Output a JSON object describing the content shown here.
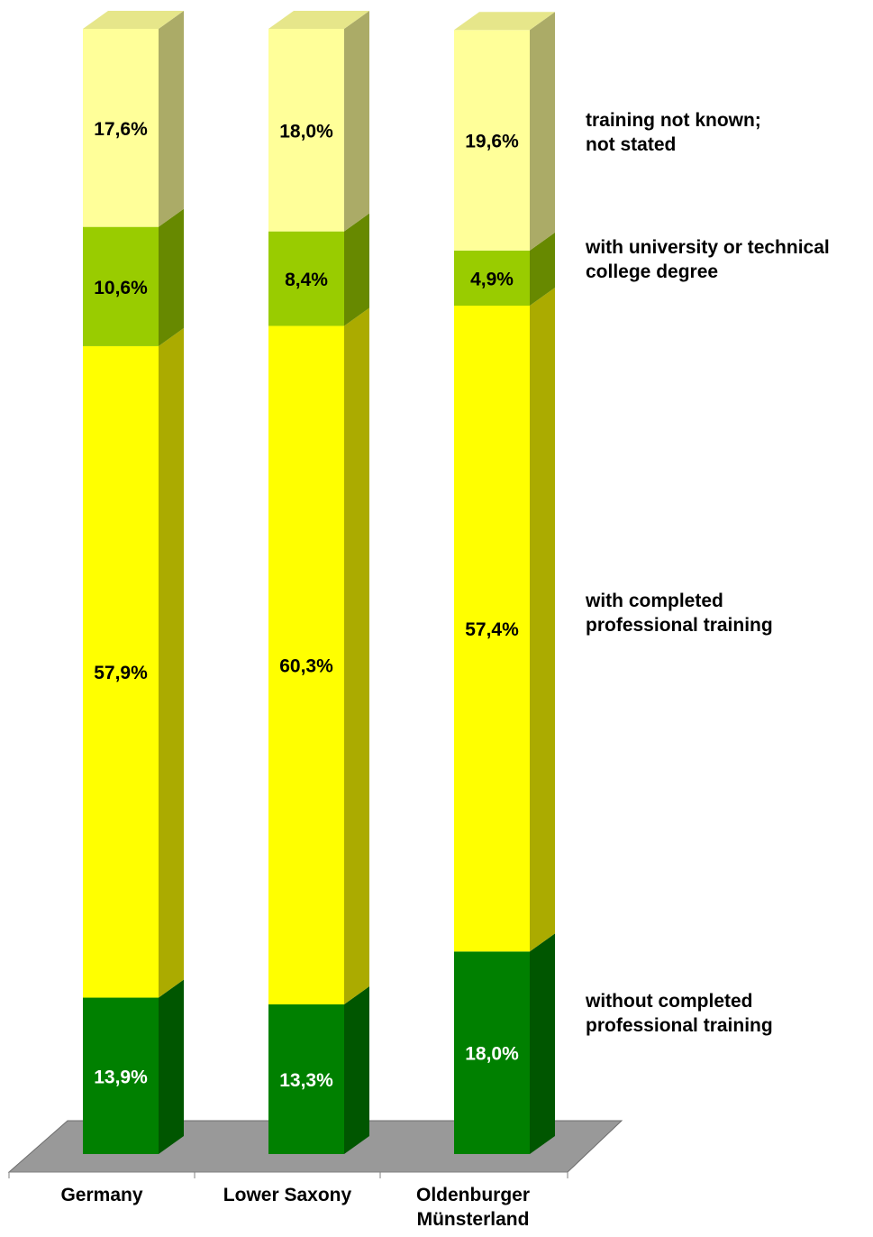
{
  "chart_data": {
    "type": "bar",
    "stacked": true,
    "three_d": true,
    "categories": [
      "Germany",
      "Lower Saxony",
      "Oldenburger Münsterland"
    ],
    "series": [
      {
        "name": "without completed professional training",
        "values": [
          13.9,
          13.3,
          18.0
        ],
        "labels": [
          "13,9%",
          "13,3%",
          "18,0%"
        ],
        "color": "#008000",
        "label_color": "#ffffff"
      },
      {
        "name": "with completed professional training",
        "values": [
          57.9,
          60.3,
          57.4
        ],
        "labels": [
          "57,9%",
          "60,3%",
          "57,4%"
        ],
        "color": "#ffff00",
        "label_color": "#000000"
      },
      {
        "name": "with university or technical college degree",
        "values": [
          10.6,
          8.4,
          4.9
        ],
        "labels": [
          "10,6%",
          "8,4%",
          "4,9%"
        ],
        "color": "#99cc00",
        "label_color": "#000000"
      },
      {
        "name": "training not known; not stated",
        "values": [
          17.6,
          18.0,
          19.6
        ],
        "labels": [
          "17,6%",
          "18,0%",
          "19,6%"
        ],
        "color": "#ffff99",
        "label_color": "#000000"
      }
    ],
    "legend": {
      "position": "right",
      "entries": [
        [
          "training not known;",
          "not stated"
        ],
        [
          "with university or technical",
          "college degree"
        ],
        [
          "with completed",
          "professional training"
        ],
        [
          "without completed",
          "professional training"
        ]
      ]
    },
    "category_labels": [
      [
        "Germany"
      ],
      [
        "Lower Saxony"
      ],
      [
        "Oldenburger",
        "Münsterland"
      ]
    ],
    "ylim": [
      0,
      100
    ],
    "grid": false,
    "floor_color": "#999999"
  }
}
